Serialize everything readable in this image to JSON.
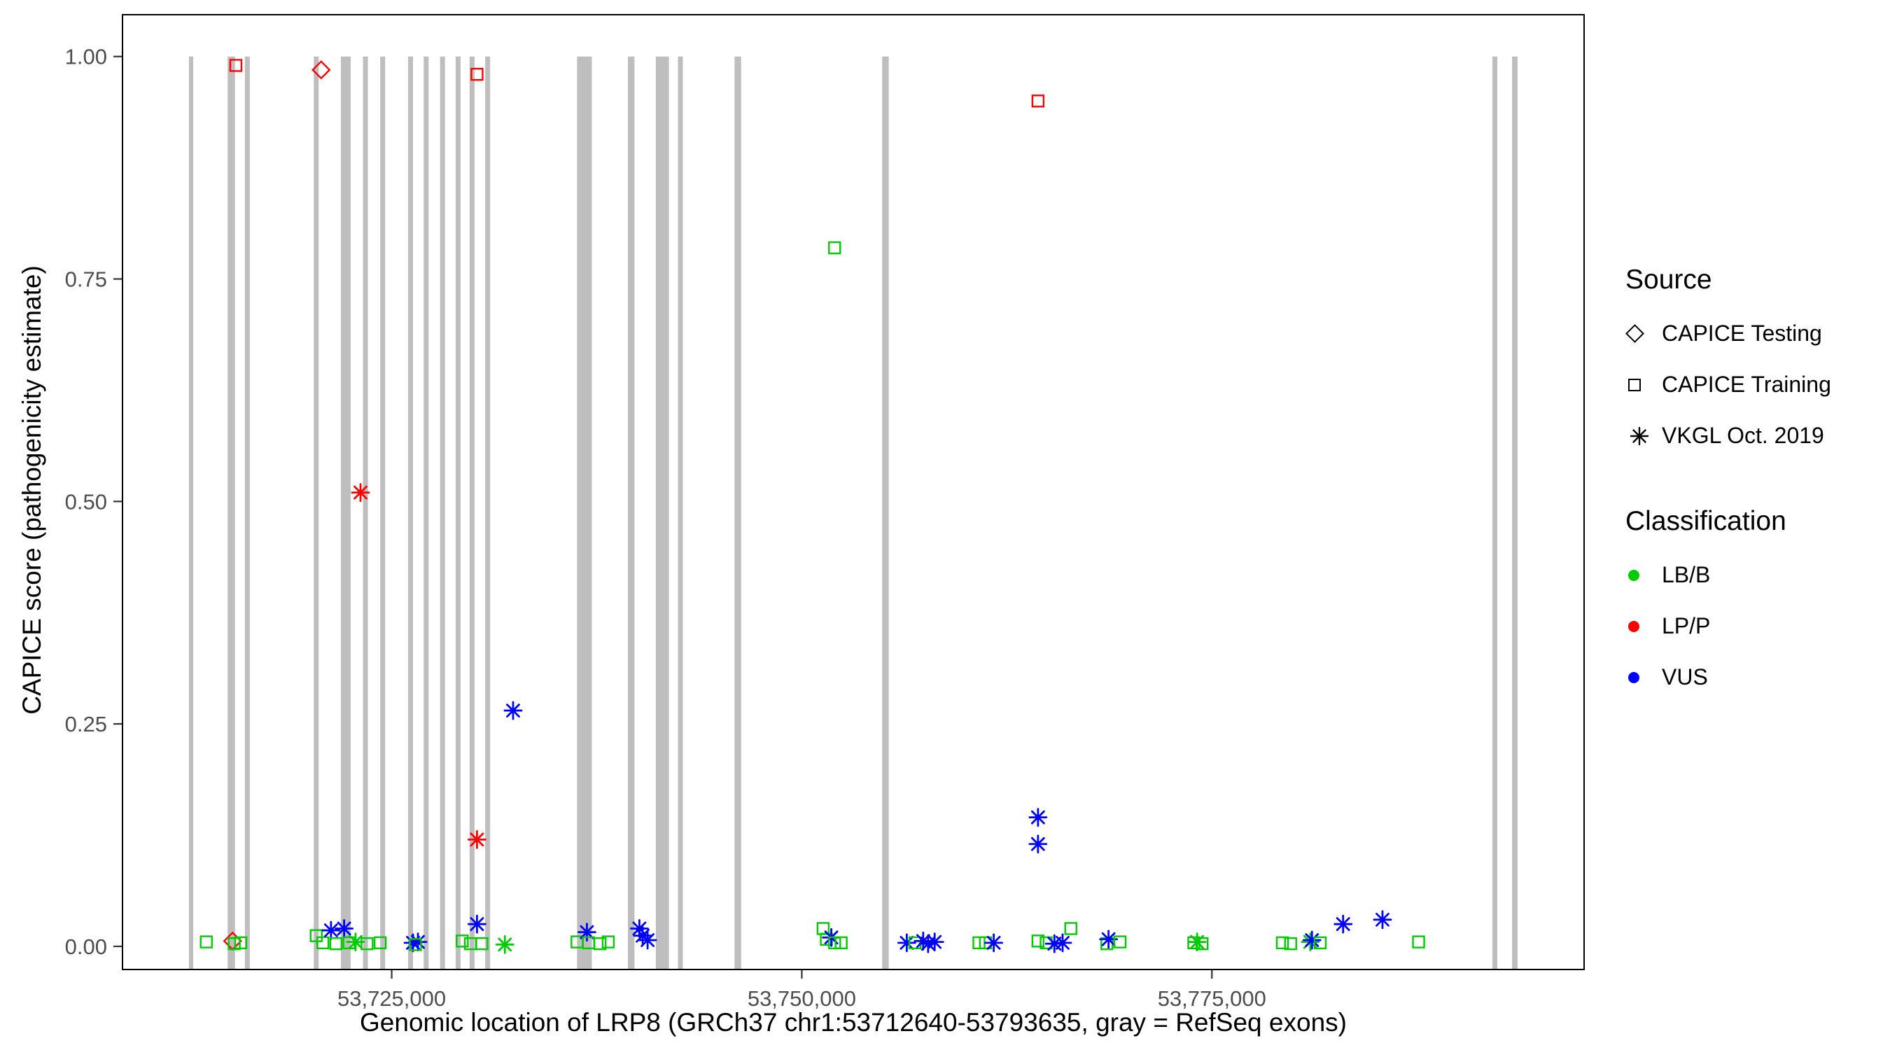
{
  "figure": {
    "background": "#FFFFFF"
  },
  "chart_data": {
    "type": "scatter",
    "title": "",
    "xlabel": "Genomic location of LRP8 (GRCh37 chr1:53712640-53793635, gray = RefSeq exons)",
    "ylabel": "CAPICE score (pathogenicity estimate)",
    "xlim": [
      53708590,
      53797690
    ],
    "ylim": [
      -0.026,
      1.047
    ],
    "grid": "off",
    "legend_position": "right",
    "x_ticks": {
      "values": [
        53725000,
        53750000,
        53775000
      ],
      "labels": [
        "53,725,000",
        "53,750,000",
        "53,775,000"
      ]
    },
    "y_ticks": {
      "values": [
        0,
        0.25,
        0.5,
        0.75,
        1.0
      ],
      "labels": [
        "0.00",
        "0.25",
        "0.50",
        "0.75",
        "1.00"
      ]
    },
    "exon_color": "#BEBEBE",
    "exon_note": "gray vertical bars = RefSeq exons, drawn from y=0 baseline region up to y=1.0",
    "exons": [
      [
        53712640,
        53712900
      ],
      [
        53715000,
        53715450
      ],
      [
        53716050,
        53716350
      ],
      [
        53720250,
        53720550
      ],
      [
        53721900,
        53722500
      ],
      [
        53723250,
        53723550
      ],
      [
        53724300,
        53724600
      ],
      [
        53726000,
        53726300
      ],
      [
        53726950,
        53727250
      ],
      [
        53727950,
        53728250
      ],
      [
        53728900,
        53729200
      ],
      [
        53729750,
        53730050
      ],
      [
        53730700,
        53731000
      ],
      [
        53736300,
        53737200
      ],
      [
        53739400,
        53739800
      ],
      [
        53741100,
        53741900
      ],
      [
        53742450,
        53742750
      ],
      [
        53745900,
        53746300
      ],
      [
        53754900,
        53755300
      ],
      [
        53792100,
        53792400
      ],
      [
        53793300,
        53793635
      ]
    ],
    "class_colors": {
      "LB/B": "#00CC00",
      "LP/P": "#FF0000",
      "VUS": "#0000FF"
    },
    "source_shapes": {
      "CAPICE Testing": "diamond",
      "CAPICE Training": "square",
      "VKGL Oct. 2019": "asterisk"
    },
    "points_format": [
      "genomic_position",
      "capice_score",
      "source(testing|training|vkgl)",
      "classification"
    ],
    "points": [
      [
        53715500,
        0.99,
        "training",
        "LP/P"
      ],
      [
        53720700,
        0.985,
        "testing",
        "LP/P"
      ],
      [
        53730200,
        0.98,
        "training",
        "LP/P"
      ],
      [
        53764400,
        0.95,
        "training",
        "LP/P"
      ],
      [
        53752000,
        0.785,
        "training",
        "LB/B"
      ],
      [
        53723100,
        0.51,
        "vkgl",
        "LP/P"
      ],
      [
        53732400,
        0.265,
        "vkgl",
        "VUS"
      ],
      [
        53764400,
        0.145,
        "vkgl",
        "VUS"
      ],
      [
        53730200,
        0.12,
        "vkgl",
        "LP/P"
      ],
      [
        53764400,
        0.115,
        "vkgl",
        "VUS"
      ],
      [
        53713700,
        0.005,
        "training",
        "LB/B"
      ],
      [
        53715300,
        0.006,
        "testing",
        "LP/P"
      ],
      [
        53715400,
        0.003,
        "training",
        "LB/B"
      ],
      [
        53715800,
        0.004,
        "training",
        "LB/B"
      ],
      [
        53720400,
        0.012,
        "training",
        "LB/B"
      ],
      [
        53720800,
        0.004,
        "training",
        "LB/B"
      ],
      [
        53721300,
        0.018,
        "vkgl",
        "VUS"
      ],
      [
        53721600,
        0.003,
        "training",
        "LB/B"
      ],
      [
        53722100,
        0.02,
        "vkgl",
        "VUS"
      ],
      [
        53722400,
        0.004,
        "training",
        "LB/B"
      ],
      [
        53722800,
        0.005,
        "vkgl",
        "LB/B"
      ],
      [
        53723500,
        0.003,
        "training",
        "LB/B"
      ],
      [
        53724300,
        0.004,
        "training",
        "LB/B"
      ],
      [
        53726300,
        0.004,
        "vkgl",
        "VUS"
      ],
      [
        53726600,
        0.005,
        "vkgl",
        "VUS"
      ],
      [
        53726450,
        0.002,
        "training",
        "LB/B"
      ],
      [
        53729300,
        0.006,
        "training",
        "LB/B"
      ],
      [
        53729800,
        0.003,
        "training",
        "LB/B"
      ],
      [
        53730200,
        0.025,
        "vkgl",
        "VUS"
      ],
      [
        53730500,
        0.003,
        "training",
        "LB/B"
      ],
      [
        53731900,
        0.002,
        "vkgl",
        "LB/B"
      ],
      [
        53736300,
        0.005,
        "training",
        "LB/B"
      ],
      [
        53736900,
        0.016,
        "vkgl",
        "VUS"
      ],
      [
        53737000,
        0.004,
        "training",
        "LB/B"
      ],
      [
        53737700,
        0.003,
        "training",
        "LB/B"
      ],
      [
        53738200,
        0.005,
        "training",
        "LB/B"
      ],
      [
        53740100,
        0.02,
        "vkgl",
        "VUS"
      ],
      [
        53740300,
        0.012,
        "vkgl",
        "VUS"
      ],
      [
        53740600,
        0.007,
        "vkgl",
        "VUS"
      ],
      [
        53751300,
        0.02,
        "training",
        "LB/B"
      ],
      [
        53751500,
        0.008,
        "training",
        "LB/B"
      ],
      [
        53751800,
        0.01,
        "vkgl",
        "VUS"
      ],
      [
        53752000,
        0.004,
        "training",
        "LB/B"
      ],
      [
        53752400,
        0.004,
        "training",
        "LB/B"
      ],
      [
        53756400,
        0.004,
        "vkgl",
        "VUS"
      ],
      [
        53756900,
        0.004,
        "training",
        "LB/B"
      ],
      [
        53757400,
        0.006,
        "vkgl",
        "VUS"
      ],
      [
        53757700,
        0.003,
        "vkgl",
        "VUS"
      ],
      [
        53758100,
        0.005,
        "vkgl",
        "VUS"
      ],
      [
        53760800,
        0.004,
        "training",
        "LB/B"
      ],
      [
        53761200,
        0.004,
        "training",
        "LB/B"
      ],
      [
        53761700,
        0.004,
        "vkgl",
        "VUS"
      ],
      [
        53764400,
        0.006,
        "training",
        "LB/B"
      ],
      [
        53764900,
        0.004,
        "training",
        "LB/B"
      ],
      [
        53765400,
        0.003,
        "vkgl",
        "VUS"
      ],
      [
        53765900,
        0.004,
        "vkgl",
        "VUS"
      ],
      [
        53766400,
        0.02,
        "training",
        "LB/B"
      ],
      [
        53768600,
        0.003,
        "training",
        "LB/B"
      ],
      [
        53768700,
        0.008,
        "vkgl",
        "VUS"
      ],
      [
        53769400,
        0.005,
        "training",
        "LB/B"
      ],
      [
        53773900,
        0.004,
        "training",
        "LB/B"
      ],
      [
        53774100,
        0.005,
        "vkgl",
        "LB/B"
      ],
      [
        53774400,
        0.003,
        "training",
        "LB/B"
      ],
      [
        53779300,
        0.004,
        "training",
        "LB/B"
      ],
      [
        53779800,
        0.003,
        "training",
        "LB/B"
      ],
      [
        53781000,
        0.005,
        "vkgl",
        "LB/B"
      ],
      [
        53781100,
        0.007,
        "vkgl",
        "VUS"
      ],
      [
        53781600,
        0.004,
        "training",
        "LB/B"
      ],
      [
        53783000,
        0.025,
        "vkgl",
        "VUS"
      ],
      [
        53785400,
        0.03,
        "vkgl",
        "VUS"
      ],
      [
        53787600,
        0.005,
        "training",
        "LB/B"
      ]
    ]
  },
  "legend": {
    "source": {
      "title": "Source",
      "items": [
        {
          "label": "CAPICE Testing",
          "shape": "diamond"
        },
        {
          "label": "CAPICE Training",
          "shape": "square"
        },
        {
          "label": "VKGL Oct. 2019",
          "shape": "asterisk"
        }
      ]
    },
    "classification": {
      "title": "Classification",
      "items": [
        {
          "label": "LB/B",
          "color": "#00CC00"
        },
        {
          "label": "LP/P",
          "color": "#FF0000"
        },
        {
          "label": "VUS",
          "color": "#0000FF"
        }
      ]
    }
  }
}
